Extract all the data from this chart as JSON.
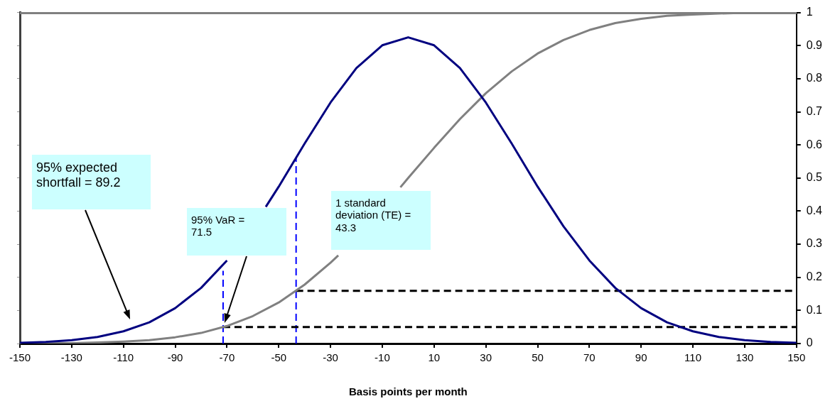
{
  "chart_data": {
    "type": "line",
    "xlabel": "Basis points per month",
    "xlim": [
      -150,
      150
    ],
    "xticks": [
      -150,
      -130,
      -110,
      -90,
      -70,
      -50,
      -30,
      -10,
      10,
      30,
      50,
      70,
      90,
      110,
      130,
      150
    ],
    "ylim": [
      0,
      1
    ],
    "yticks": [
      0,
      0.1,
      0.2,
      0.3,
      0.4,
      0.5,
      0.6,
      0.7,
      0.8,
      0.9,
      1
    ],
    "grid": false,
    "series": [
      {
        "color": "#000080",
        "x": [
          -150,
          -140,
          -130,
          -120,
          -110,
          -100,
          -90,
          -80,
          -70,
          -60,
          -55,
          -50,
          -40,
          -30,
          -20,
          -10,
          0,
          10,
          20,
          30,
          40,
          50,
          60,
          70,
          80,
          90,
          100,
          110,
          120,
          130,
          140,
          150
        ],
        "values": [
          0.002,
          0.005,
          0.01,
          0.02,
          0.037,
          0.064,
          0.107,
          0.168,
          0.251,
          null,
          0.413,
          0.474,
          0.604,
          0.728,
          0.832,
          0.901,
          0.925,
          0.901,
          0.832,
          0.728,
          0.604,
          0.474,
          0.354,
          0.251,
          0.168,
          0.107,
          0.064,
          0.037,
          0.02,
          0.01,
          0.005,
          0.002
        ]
      },
      {
        "color": "#808080",
        "x": [
          -150,
          -140,
          -130,
          -120,
          -110,
          -100,
          -90,
          -80,
          -70,
          -60,
          -50,
          -40,
          -30,
          -27,
          -20,
          -3,
          0,
          10,
          20,
          30,
          40,
          50,
          60,
          70,
          80,
          90,
          100,
          110,
          120,
          130,
          140,
          150
        ],
        "values": [
          0.0,
          0.001,
          0.001,
          0.003,
          0.006,
          0.01,
          0.019,
          0.032,
          0.053,
          0.083,
          0.124,
          0.178,
          0.244,
          0.266,
          null,
          0.472,
          0.5,
          0.591,
          0.678,
          0.756,
          0.822,
          0.876,
          0.917,
          0.947,
          0.968,
          0.981,
          0.99,
          0.994,
          0.997,
          0.999,
          0.999,
          1.0
        ]
      },
      {
        "type": "line",
        "color": "#000000",
        "line_style": "dashed",
        "x": [
          -43.3,
          150
        ],
        "values": [
          0.159,
          0.159
        ]
      },
      {
        "type": "line",
        "color": "#000000",
        "line_style": "dashed",
        "x": [
          -71.5,
          150
        ],
        "values": [
          0.05,
          0.05
        ]
      },
      {
        "type": "line",
        "color": "#0000ff",
        "line_style": "dashed",
        "x": [
          -71.5,
          -71.5
        ],
        "values": [
          0,
          0.22
        ]
      },
      {
        "type": "line",
        "color": "#0000ff",
        "line_style": "dashed",
        "x": [
          -43.3,
          -43.3
        ],
        "values": [
          0,
          0.56
        ]
      }
    ],
    "annotations": [
      "95% expected shortfall = 89.2",
      "95% VaR = 71.5",
      "1 standard deviation (TE) = 43.3"
    ]
  }
}
